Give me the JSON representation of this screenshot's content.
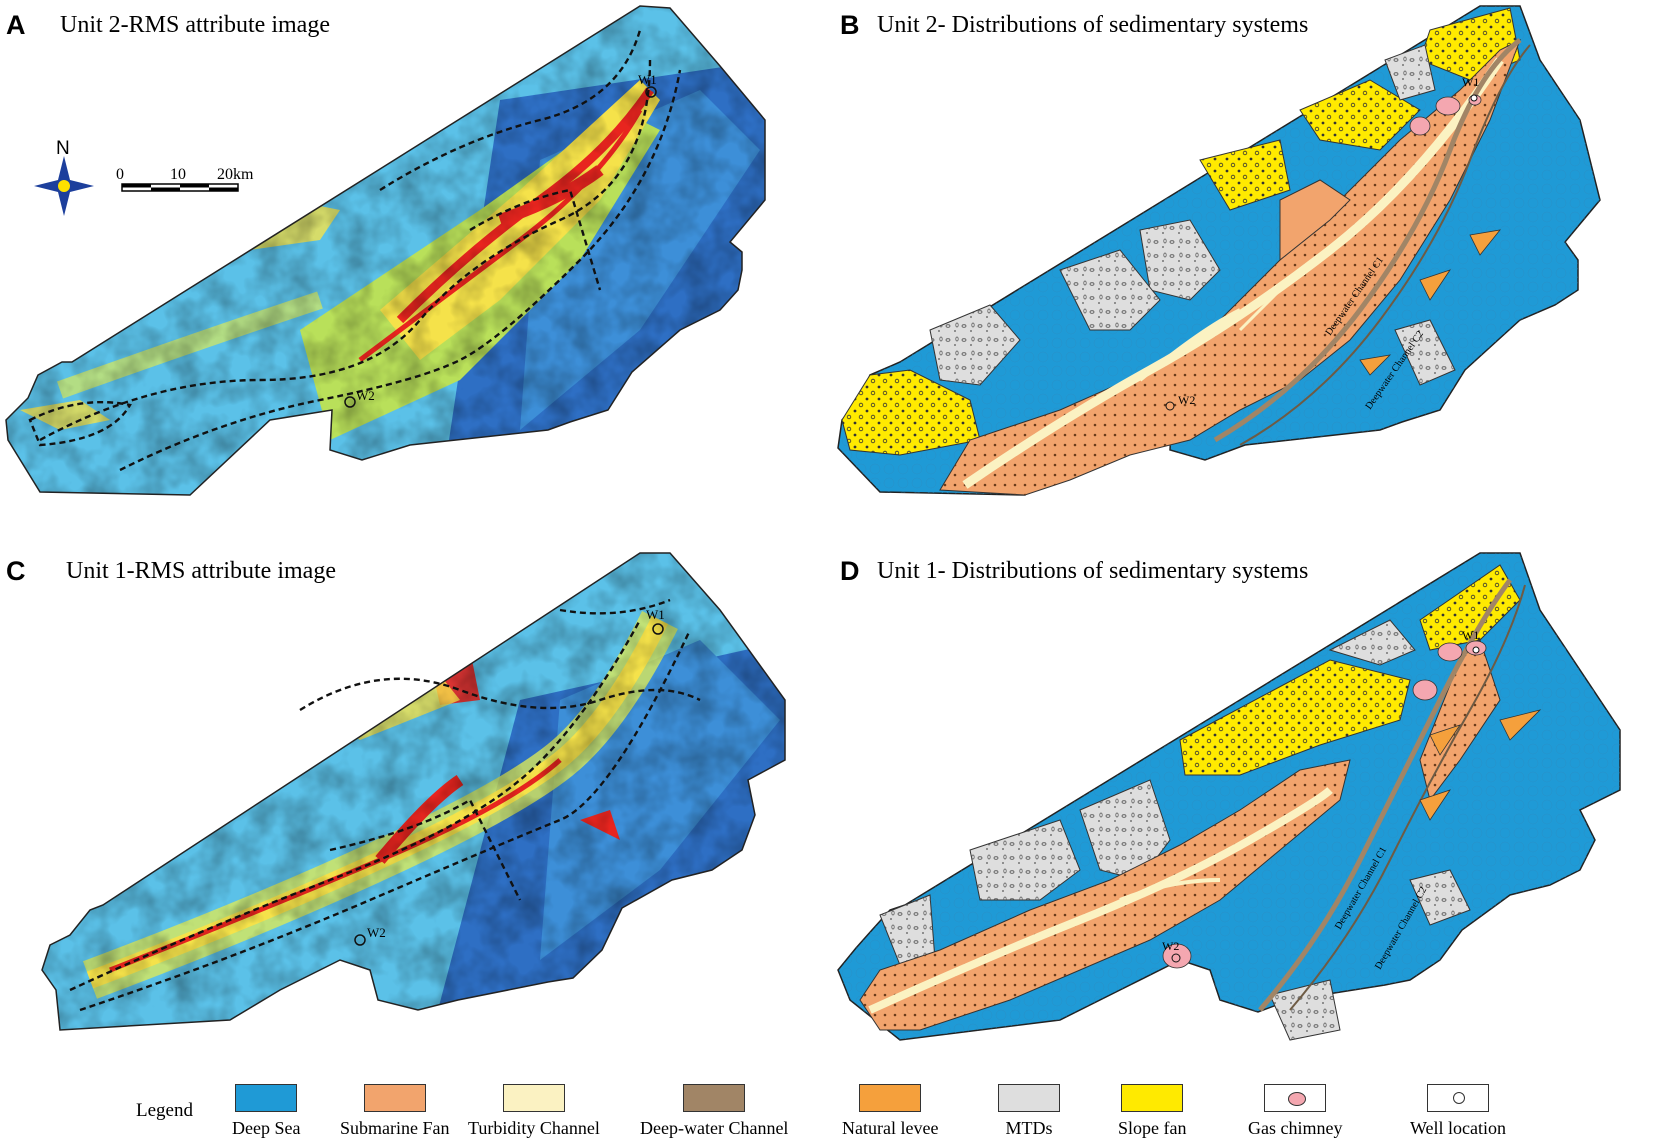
{
  "panels": [
    {
      "letter": "A",
      "title": "Unit 2-RMS attribute image"
    },
    {
      "letter": "B",
      "title": "Unit 2- Distributions of sedimentary systems"
    },
    {
      "letter": "C",
      "title": "Unit 1-RMS attribute image"
    },
    {
      "letter": "D",
      "title": "Unit 1- Distributions of sedimentary systems"
    }
  ],
  "north_arrow": {
    "label": "N",
    "icon": "compass-star-icon"
  },
  "scale_bar": {
    "ticks": [
      "0",
      "10",
      "20km"
    ]
  },
  "wells": {
    "w1": "W1",
    "w2": "W2"
  },
  "channel_labels": {
    "b_c1": "Deepwater Channel C1",
    "b_c2": "Deepwater Channel C2",
    "d_c1": "Deepwater Channel C1",
    "d_c2": "Deepwater Channel C2"
  },
  "legend": {
    "title": "Legend",
    "items": [
      {
        "label": "Deep  Sea",
        "color": "#1f9ad6"
      },
      {
        "label": "Submarine Fan",
        "color": "#f2a46d"
      },
      {
        "label": "Turbidity  Channel",
        "color": "#fbf2c2"
      },
      {
        "label": "Deep-water  Channel",
        "color": "#a18566"
      },
      {
        "label": "Natural  levee",
        "color": "#f5a03c"
      },
      {
        "label": "MTDs",
        "color": "#dedede"
      },
      {
        "label": "Slope fan",
        "color": "#ffea00"
      },
      {
        "label": "Gas chimney",
        "color": "#f4a7b0"
      },
      {
        "label": "Well location",
        "color": "#ffffff"
      }
    ]
  }
}
